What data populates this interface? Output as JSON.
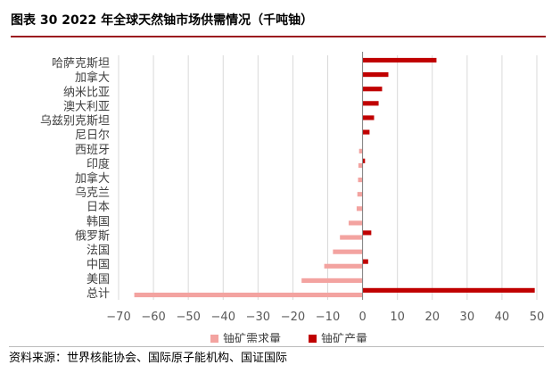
{
  "header": {
    "title": "图表 30 2022 年全球天然铀市场供需情况（千吨铀）"
  },
  "footer": {
    "source": "资料来源：世界核能协会、国际原子能机构、国证国际"
  },
  "colors": {
    "demand": "#f3a3a0",
    "supply": "#c00000",
    "grid": "#d9d9d9",
    "axis": "#595959"
  },
  "chart_data": {
    "type": "bar",
    "orientation": "horizontal",
    "categories": [
      "哈萨克斯坦",
      "加拿大",
      "纳米比亚",
      "澳大利亚",
      "乌兹别克斯坦",
      "尼日尔",
      "西班牙",
      "印度",
      "加拿大",
      "乌克兰",
      "日本",
      "韩国",
      "俄罗斯",
      "法国",
      "中国",
      "美国",
      "总计"
    ],
    "series": [
      {
        "name": "铀矿需求量",
        "values": [
          0,
          0,
          0,
          0,
          0,
          0,
          -1.0,
          -1.2,
          -1.3,
          -1.5,
          -1.7,
          -4.0,
          -6.5,
          -8.5,
          -11.0,
          -17.5,
          -65.5
        ]
      },
      {
        "name": "铀矿产量",
        "values": [
          21.2,
          7.4,
          5.6,
          4.6,
          3.3,
          2.0,
          0,
          0.7,
          0,
          0,
          0,
          0,
          2.5,
          0,
          1.6,
          0,
          49.4
        ]
      }
    ],
    "xlim": [
      -70,
      50
    ],
    "xticks": [
      -70,
      -60,
      -50,
      -40,
      -30,
      -20,
      -10,
      0,
      10,
      20,
      30,
      40,
      50
    ],
    "xtick_labels": [
      "−70",
      "−60",
      "−50",
      "−40",
      "−30",
      "−20",
      "−10",
      "0",
      "10",
      "20",
      "30",
      "40",
      "50"
    ],
    "xlabel": "",
    "ylabel": "",
    "grid": true,
    "legend_position": "bottom-center"
  }
}
